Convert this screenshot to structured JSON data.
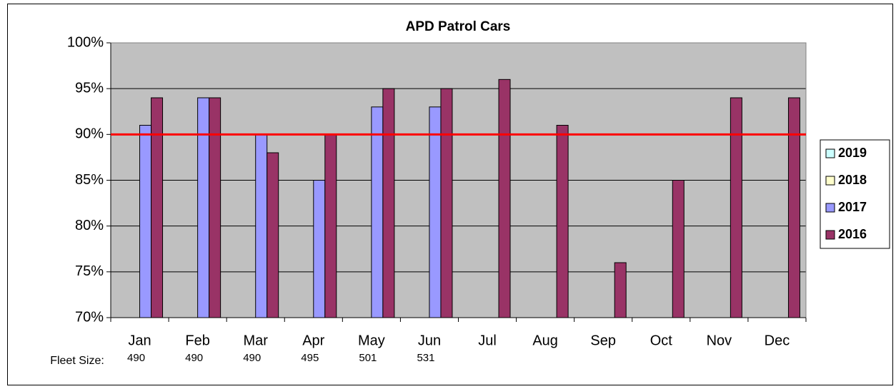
{
  "chart_data": {
    "type": "bar",
    "title": "APD Patrol Cars",
    "categories": [
      "Jan",
      "Feb",
      "Mar",
      "Apr",
      "May",
      "Jun",
      "Jul",
      "Aug",
      "Sep",
      "Oct",
      "Nov",
      "Dec"
    ],
    "series": [
      {
        "name": "2019",
        "color": "#ccffff",
        "values": [
          null,
          null,
          null,
          null,
          null,
          null,
          null,
          null,
          null,
          null,
          null,
          null
        ]
      },
      {
        "name": "2018",
        "color": "#ffffcc",
        "values": [
          null,
          null,
          null,
          null,
          null,
          null,
          null,
          null,
          null,
          null,
          null,
          null
        ]
      },
      {
        "name": "2017",
        "color": "#9999ff",
        "values": [
          91,
          94,
          90,
          85,
          93,
          93,
          null,
          null,
          null,
          null,
          null,
          null
        ]
      },
      {
        "name": "2016",
        "color": "#993366",
        "values": [
          94,
          94,
          88,
          90,
          95,
          95,
          96,
          91,
          76,
          85,
          94,
          94
        ]
      }
    ],
    "ylim": [
      70,
      100
    ],
    "yticks": [
      {
        "value": 70,
        "label": "70%"
      },
      {
        "value": 75,
        "label": "75%"
      },
      {
        "value": 80,
        "label": "80%"
      },
      {
        "value": 85,
        "label": "85%"
      },
      {
        "value": 90,
        "label": "90%"
      },
      {
        "value": 95,
        "label": "95%"
      },
      {
        "value": 100,
        "label": "100%"
      }
    ],
    "grid": true,
    "plot_background": "#c0c0c0",
    "reference_line": {
      "value": 90,
      "color": "#ff0000"
    },
    "legend": "right",
    "fleet_size_label": "Fleet Size:",
    "fleet_size": [
      490,
      490,
      490,
      495,
      501,
      531
    ]
  }
}
